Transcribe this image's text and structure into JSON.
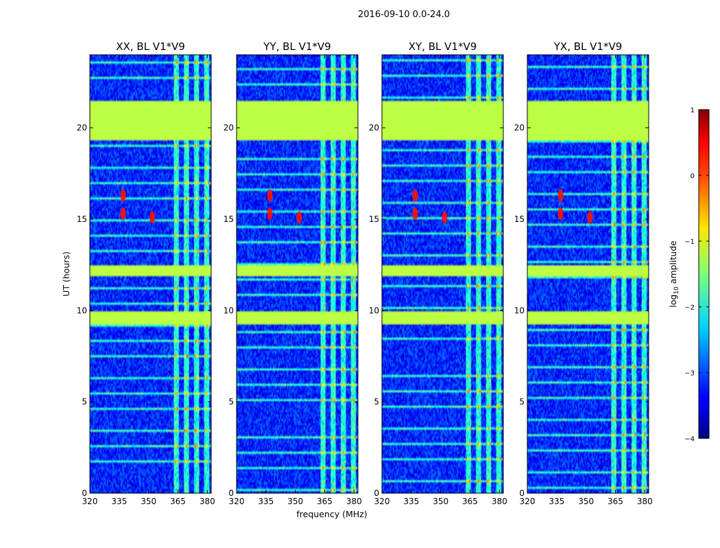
{
  "chart_data": {
    "type": "heatmap",
    "suptitle": "2016-09-10 0.0-24.0",
    "xlabel": "frequency (MHz)",
    "ylabel": "UT (hours)",
    "xlim": [
      320,
      382
    ],
    "ylim": [
      0,
      24
    ],
    "x_ticks": [
      "320",
      "335",
      "350",
      "365",
      "380"
    ],
    "y_ticks": [
      "0",
      "5",
      "10",
      "15",
      "20"
    ],
    "panels": [
      {
        "title": "XX, BL V1*V9"
      },
      {
        "title": "YY, BL V1*V9"
      },
      {
        "title": "XY, BL V1*V9"
      },
      {
        "title": "YX, BL V1*V9"
      }
    ],
    "colorbar": {
      "label": "log10 amplitude",
      "label_base": "log",
      "label_sub": "10",
      "label_rest": " amplitude",
      "range": [
        -4,
        1
      ],
      "ticks": [
        "1",
        "0",
        "−1",
        "−2",
        "−3",
        "−4"
      ],
      "colormap": "jet"
    },
    "flagged_time_ranges_hours": [
      [
        19.3,
        21.5
      ],
      [
        9.2,
        10.0
      ],
      [
        11.9,
        12.5
      ]
    ],
    "flag_level": -1.2,
    "background_level": -3.2,
    "bright_rfi_points": [
      {
        "freq": 337,
        "ut": 15.3
      },
      {
        "freq": 337,
        "ut": 16.3
      },
      {
        "freq": 352,
        "ut": 15.1
      }
    ]
  }
}
